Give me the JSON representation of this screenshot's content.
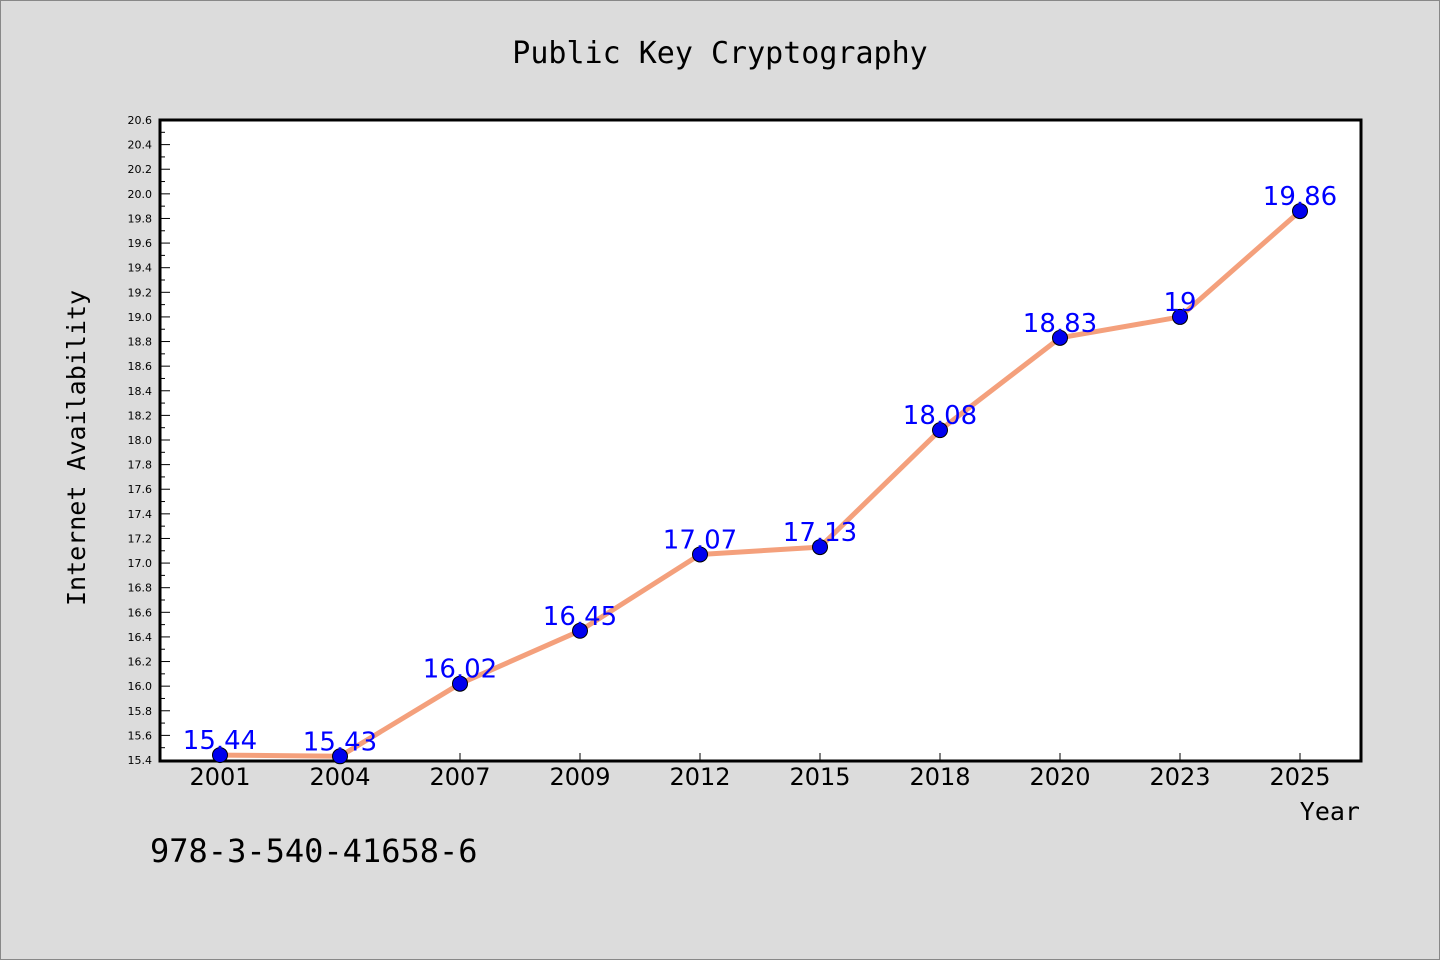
{
  "chart_data": {
    "type": "line",
    "title": "Public Key Cryptography",
    "xlabel": "Year",
    "ylabel": "Internet Availability",
    "categories": [
      "2001",
      "2004",
      "2007",
      "2009",
      "2012",
      "2015",
      "2018",
      "2020",
      "2023",
      "2025"
    ],
    "series": [
      {
        "values": [
          15.44,
          15.43,
          16.02,
          16.45,
          17.07,
          17.13,
          18.08,
          18.83,
          19.0,
          19.86
        ],
        "data_labels": [
          "15.44",
          "15.43",
          "16.02",
          "16.45",
          "17.07",
          "17.13",
          "18.08",
          "18.83",
          "19",
          "19.86"
        ],
        "line_color": "#f4a07c",
        "marker_color": "#0000ee"
      }
    ],
    "ylim": [
      15.4,
      20.6
    ],
    "ytick_step": 0.2,
    "grid": false,
    "legend": "none"
  },
  "footer": {
    "isbn": "978-3-540-41658-6"
  },
  "colors": {
    "background": "#dcdcdc",
    "plot_background": "#ffffff",
    "label_color": "#0000ff"
  }
}
